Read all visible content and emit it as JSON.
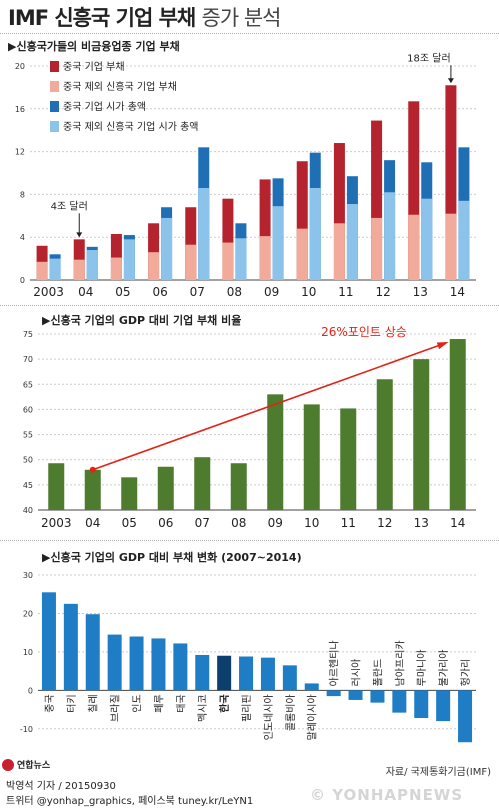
{
  "header": {
    "title_main": "IMF 신흥국 기업 부채",
    "title_sub": "증가 분석"
  },
  "chart_data": [
    {
      "type": "bar",
      "title": "▶신흥국가들의 비금융업종 기업 부채",
      "categories": [
        "2003",
        "04",
        "05",
        "06",
        "07",
        "08",
        "09",
        "10",
        "11",
        "12",
        "13",
        "14"
      ],
      "ylim": [
        0,
        20
      ],
      "yticks": [
        0,
        4,
        8,
        12,
        16,
        20
      ],
      "series": [
        {
          "name": "중국 기업 부채",
          "color": "#b5232e",
          "values": [
            3.2,
            3.8,
            4.3,
            5.3,
            6.8,
            7.6,
            9.4,
            11.1,
            12.8,
            14.9,
            16.7,
            18.2
          ],
          "stack": "debt"
        },
        {
          "name": "중국 제외 신흥국 기업 부채",
          "color": "#f2aa9a",
          "values": [
            1.7,
            1.9,
            2.1,
            2.6,
            3.3,
            3.5,
            4.1,
            4.8,
            5.3,
            5.8,
            6.1,
            6.2
          ],
          "stack": "debt"
        },
        {
          "name": "중국 기업 시가 총액",
          "color": "#1f6fb4",
          "values": [
            2.4,
            3.1,
            4.2,
            6.8,
            12.4,
            5.3,
            9.5,
            11.9,
            9.7,
            11.2,
            11.0,
            12.4
          ],
          "stack": "cap"
        },
        {
          "name": "중국 제외 신흥국 기업 시가 총액",
          "color": "#8cc3ea",
          "values": [
            2.0,
            2.8,
            3.8,
            5.8,
            8.6,
            3.9,
            6.9,
            8.6,
            7.1,
            8.2,
            7.6,
            7.4
          ],
          "stack": "cap"
        }
      ],
      "annotations": [
        {
          "text": "4조 달러",
          "category": "04",
          "value": 3.8
        },
        {
          "text": "18조 달러",
          "category": "14",
          "value": 18.2
        }
      ]
    },
    {
      "type": "bar",
      "title": "▶신흥국 기업의 GDP 대비 기업 부채 비율",
      "categories": [
        "2003",
        "04",
        "05",
        "06",
        "07",
        "08",
        "09",
        "10",
        "11",
        "12",
        "13",
        "14"
      ],
      "values": [
        49.3,
        48.0,
        46.5,
        48.6,
        50.5,
        49.3,
        63.0,
        61.0,
        60.2,
        66.0,
        70.0,
        74.0
      ],
      "ylim": [
        40,
        75
      ],
      "yticks": [
        40,
        45,
        50,
        55,
        60,
        65,
        70,
        75
      ],
      "color": "#4e7c2f",
      "annotation": {
        "text": "26%포인트 상승",
        "from": "04",
        "to": "14",
        "color": "#e02418"
      }
    },
    {
      "type": "bar",
      "title": "▶신흥국 기업의 GDP 대비 부채 변화 (2007~2014)",
      "categories": [
        "중국",
        "터키",
        "칠레",
        "브라질",
        "인도",
        "페루",
        "태국",
        "멕시코",
        "한국",
        "필리핀",
        "인도네시아",
        "콜롬비아",
        "말레이시아",
        "아르헨티나",
        "러시아",
        "폴란드",
        "남아프리카",
        "루마니아",
        "불가리아",
        "헝가리"
      ],
      "values": [
        25.5,
        22.5,
        19.8,
        14.5,
        14.0,
        13.5,
        12.2,
        9.2,
        9.0,
        8.8,
        8.5,
        6.5,
        1.8,
        -1.5,
        -2.5,
        -3.2,
        -5.8,
        -7.2,
        -8.0,
        -13.5
      ],
      "highlight": "한국",
      "ylim": [
        -15,
        30
      ],
      "yticks": [
        -10,
        0,
        10,
        20,
        30
      ],
      "color": "#1f7dc5",
      "highlight_color": "#0d3f6e"
    }
  ],
  "footer": {
    "logo": "연합뉴스",
    "source": "자료/ 국제통화기금(IMF)",
    "reporter": "박영석 기자 / 20150930",
    "sns": "트위터 @yonhap_graphics, 페이스북 tuney.kr/LeYN1",
    "watermark": "© YONHAPNEWS"
  }
}
